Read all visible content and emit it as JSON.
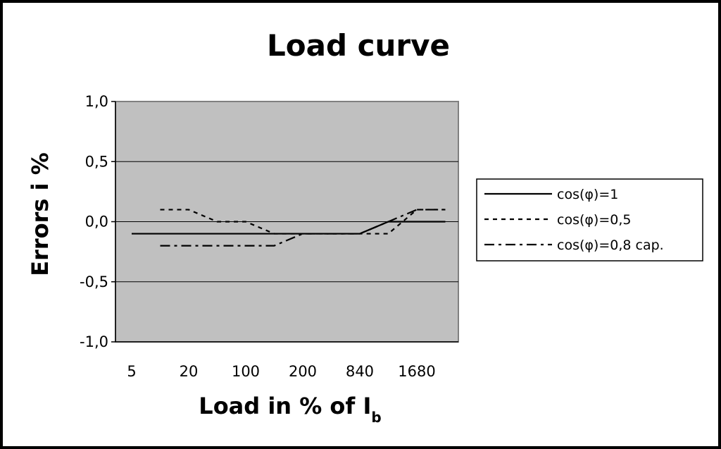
{
  "chart_data": {
    "type": "line",
    "title": "Load curve",
    "xlabel": "Load in % of I",
    "xlabel_subscript": "b",
    "ylabel": "Errors i %",
    "categories": [
      "5",
      "20",
      "100",
      "200",
      "840",
      "1680"
    ],
    "ylim": [
      -1.0,
      1.0
    ],
    "yticks": [
      "1,0",
      "0,5",
      "0,0",
      "-0,5",
      "-1,0"
    ],
    "grid": true,
    "legend_position": "right",
    "series": [
      {
        "name": "cos(φ)=1",
        "style": "solid",
        "x": [
          0,
          1,
          2,
          3,
          4,
          4.5,
          5.5
        ],
        "y": [
          -0.1,
          -0.1,
          -0.1,
          -0.1,
          -0.1,
          0.0,
          0.0
        ]
      },
      {
        "name": "cos(φ)=0,5",
        "style": "dotted",
        "x": [
          0.5,
          1.0,
          1.5,
          2.0,
          2.5,
          4.0,
          4.5,
          5.0,
          5.5
        ],
        "y": [
          0.1,
          0.1,
          0.0,
          0.0,
          -0.1,
          -0.1,
          -0.1,
          0.1,
          0.1
        ]
      },
      {
        "name": "cos(φ)=0,8 cap.",
        "style": "dash-dot",
        "x": [
          0.5,
          1.0,
          1.5,
          2.0,
          2.5,
          3.0,
          4.0,
          5.0,
          5.5
        ],
        "y": [
          -0.2,
          -0.2,
          -0.2,
          -0.2,
          -0.2,
          -0.1,
          -0.1,
          0.1,
          0.1
        ]
      }
    ]
  },
  "colors": {
    "plot_background": "#c0c0c0",
    "gridline": "#000000",
    "series": "#000000"
  }
}
